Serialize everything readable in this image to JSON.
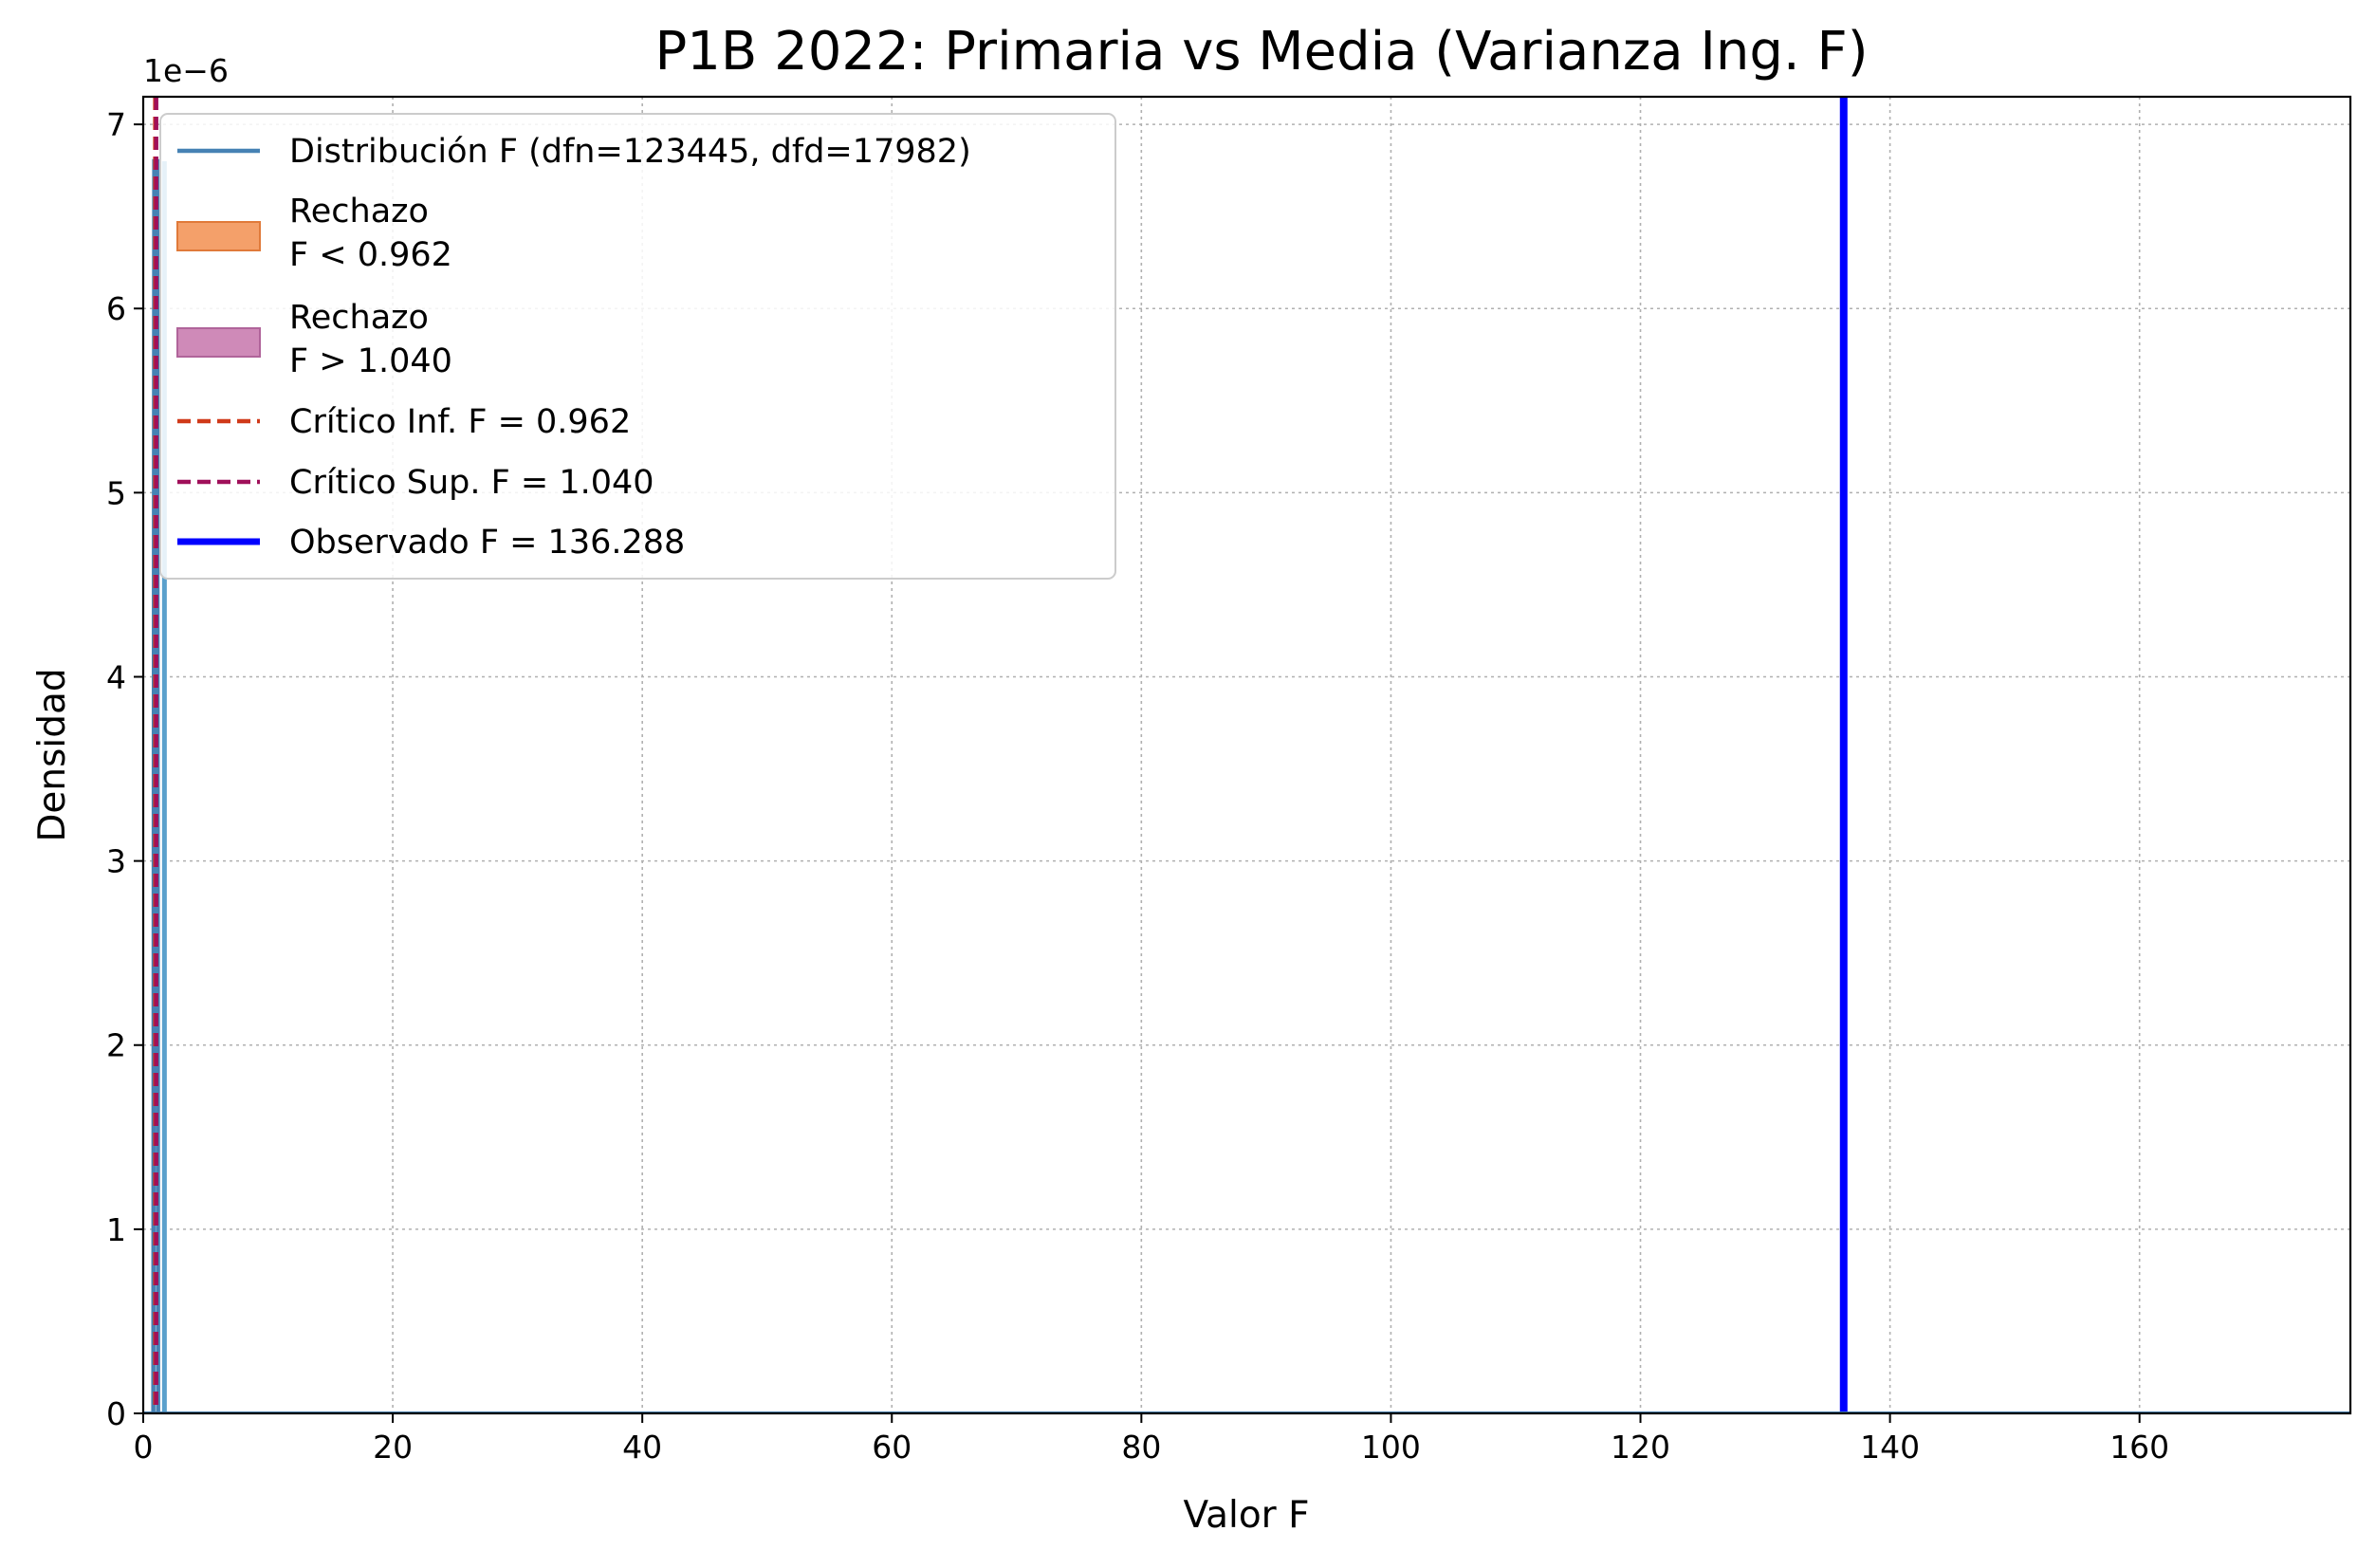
{
  "chart_data": {
    "type": "line",
    "title": "P1B 2022: Primaria vs Media (Varianza Ing. F)",
    "xlabel": "Valor F",
    "ylabel": "Densidad",
    "y_offset_text": "1e−6",
    "xlim": [
      0,
      176.9
    ],
    "ylim": [
      0,
      7.15
    ],
    "x_ticks": [
      0,
      20,
      40,
      60,
      80,
      100,
      120,
      140,
      160
    ],
    "y_ticks": [
      0,
      1,
      2,
      3,
      4,
      5,
      6,
      7
    ],
    "grid": true,
    "legend_position": "upper-left",
    "series": [
      {
        "name": "Distribución F (dfn=123445, dfd=17982)",
        "kind": "line",
        "color": "#4682b4",
        "x": [
          0.962,
          0.98,
          1.0,
          1.02,
          1.04
        ],
        "y": [
          6.8,
          6.8,
          6.8,
          6.8,
          6.8
        ]
      },
      {
        "name": "Rechazo\nF < 0.962",
        "kind": "area",
        "color": "#f4a06a",
        "x_range": [
          0,
          0.962
        ]
      },
      {
        "name": "Rechazo\nF > 1.040",
        "kind": "area",
        "color": "#cf8ab8",
        "x_range": [
          1.04,
          176.9
        ]
      },
      {
        "name": "Crítico Inf. F = 0.962",
        "kind": "vline-dashed",
        "color": "#d03a1a",
        "x": 0.962
      },
      {
        "name": "Crítico Sup. F = 1.040",
        "kind": "vline-dashed",
        "color": "#a0105a",
        "x": 1.04
      },
      {
        "name": "Observado F = 136.288",
        "kind": "vline",
        "color": "#0000ff",
        "x": 136.288
      }
    ]
  }
}
